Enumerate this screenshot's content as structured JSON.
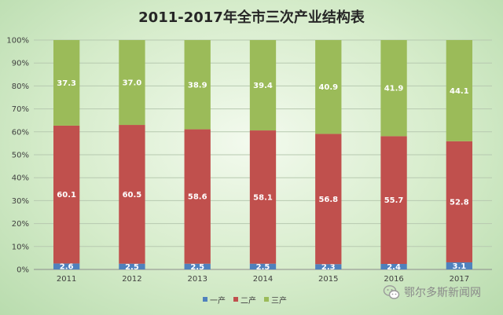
{
  "chart_data": {
    "type": "bar",
    "stacked": true,
    "title": "2011-2017年全市三次产业结构表",
    "categories": [
      "2011",
      "2012",
      "2013",
      "2014",
      "2015",
      "2016",
      "2017"
    ],
    "series": [
      {
        "name": "一产",
        "color": "#4f81bd",
        "values": [
          2.6,
          2.5,
          2.5,
          2.5,
          2.3,
          2.4,
          3.1
        ]
      },
      {
        "name": "二产",
        "color": "#c0504d",
        "values": [
          60.1,
          60.5,
          58.6,
          58.1,
          56.8,
          55.7,
          52.8
        ]
      },
      {
        "name": "三产",
        "color": "#9bbb59",
        "values": [
          37.3,
          37.0,
          38.9,
          39.4,
          40.9,
          41.9,
          44.1
        ]
      }
    ],
    "ylim": [
      0,
      100
    ],
    "y_ticks": [
      "0%",
      "10%",
      "20%",
      "30%",
      "40%",
      "50%",
      "60%",
      "70%",
      "80%",
      "90%",
      "100%"
    ],
    "xlabel": "",
    "ylabel": "",
    "grid": true,
    "legend_position": "bottom",
    "data_labels": true
  },
  "watermark": {
    "text": "鄂尔多斯新闻网",
    "icon": "wechat-icon"
  }
}
